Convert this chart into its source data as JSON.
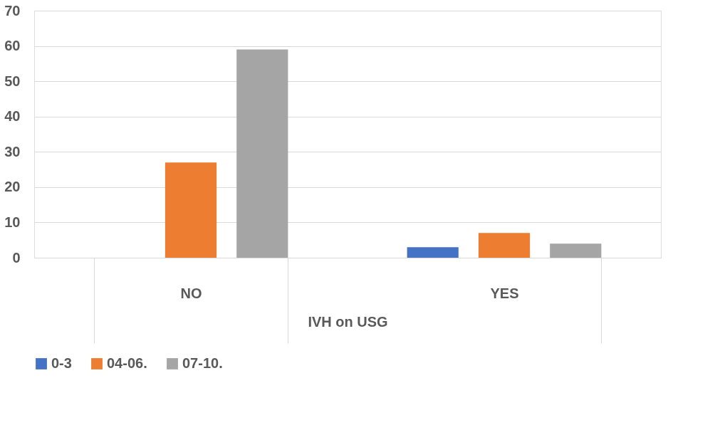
{
  "chart_data": {
    "type": "bar",
    "xlabel": "IVH on USG",
    "categories": [
      "NO",
      "YES"
    ],
    "series": [
      {
        "name": "0-3",
        "color": "#4472c4",
        "values": [
          0,
          3
        ]
      },
      {
        "name": "04-06.",
        "color": "#ed7d31",
        "values": [
          27,
          7
        ]
      },
      {
        "name": "07-10.",
        "color": "#a5a5a5",
        "values": [
          59,
          4
        ]
      }
    ],
    "ylim": [
      0,
      70
    ],
    "yticks": [
      0,
      10,
      20,
      30,
      40,
      50,
      60,
      70
    ],
    "grid": "y",
    "legend": "bottom"
  }
}
